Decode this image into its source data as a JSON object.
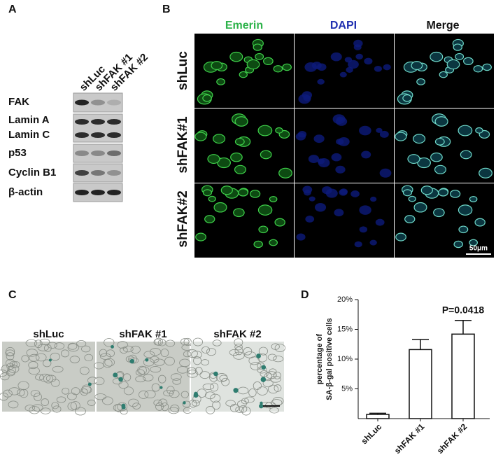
{
  "panels": {
    "a": {
      "label": "A",
      "columns": [
        "shLuc",
        "shFAK #1",
        "shFAK #2"
      ],
      "rows": [
        "FAK",
        "Lamin A",
        "Lamin C",
        "p53",
        "Cyclin B1",
        "β-actin"
      ]
    },
    "b": {
      "label": "B",
      "columns": [
        "Emerin",
        "DAPI",
        "Merge"
      ],
      "rows": [
        "shLuc",
        "shFAK#1",
        "shFAK#2"
      ],
      "scale_bar": "50μm"
    },
    "c": {
      "label": "C",
      "columns": [
        "shLuc",
        "shFAK #1",
        "shFAK #2"
      ]
    }
  },
  "chart_data": {
    "type": "bar",
    "panel_label": "D",
    "ylabel": [
      "percentage of",
      "SA-β-gal positive cells"
    ],
    "categories": [
      "shLuc",
      "shFAK #1",
      "shFAK #2"
    ],
    "values": [
      0.7,
      11.6,
      14.2
    ],
    "errors": [
      0.2,
      1.7,
      2.3
    ],
    "color": "#ffffff",
    "ylim": [
      0,
      20
    ],
    "yticks": [
      {
        "value": 5,
        "label": "5%"
      },
      {
        "value": 10,
        "label": "10%"
      },
      {
        "value": 15,
        "label": "15%"
      },
      {
        "value": 20,
        "label": "20%"
      }
    ],
    "annotations": [
      {
        "text": "P=0.0418",
        "category": 2
      }
    ]
  }
}
